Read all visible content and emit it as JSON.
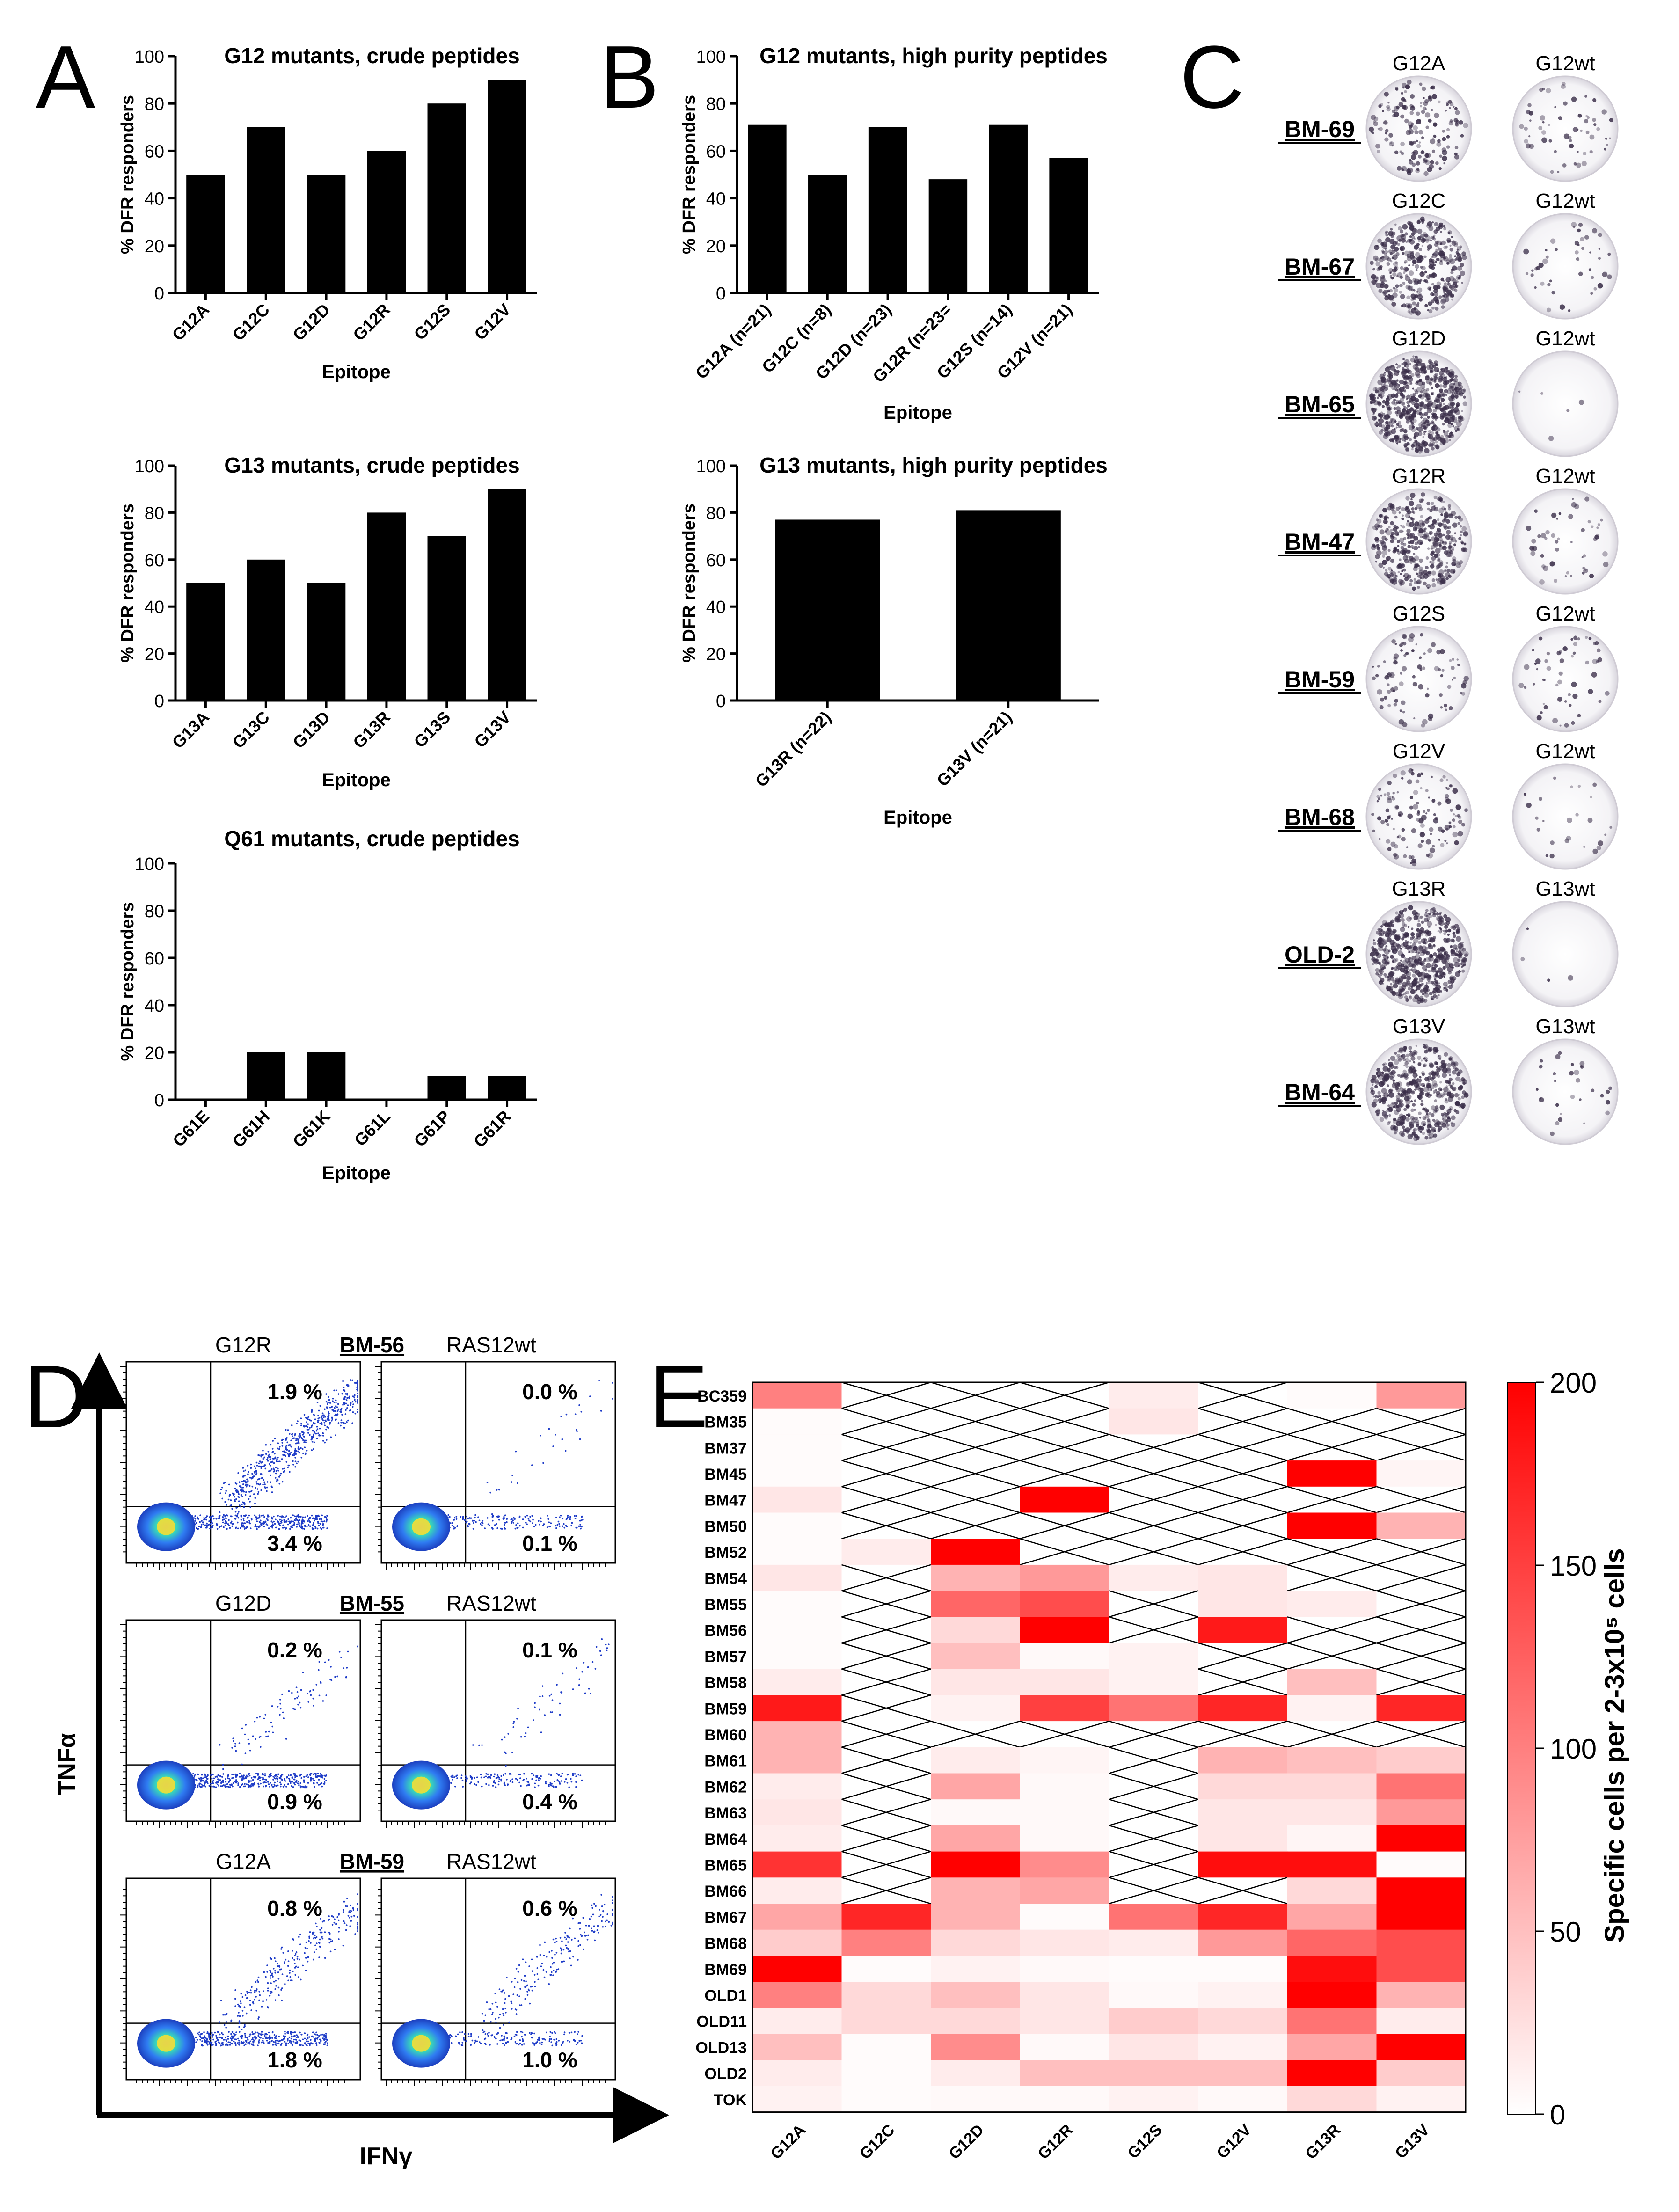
{
  "panel_letters": [
    "A",
    "B",
    "C",
    "D",
    "E"
  ],
  "chart_data": [
    {
      "id": "A1",
      "type": "bar",
      "title": "G12 mutants, crude peptides",
      "xlabel": "Epitope",
      "ylabel": "% DFR responders",
      "ylim": [
        0,
        100
      ],
      "yticks": [
        0,
        20,
        40,
        60,
        80,
        100
      ],
      "categories": [
        "G12A",
        "G12C",
        "G12D",
        "G12R",
        "G12S",
        "G12V"
      ],
      "values": [
        50,
        70,
        50,
        60,
        80,
        90
      ]
    },
    {
      "id": "A2",
      "type": "bar",
      "title": "G13 mutants, crude peptides",
      "xlabel": "Epitope",
      "ylabel": "% DFR responders",
      "ylim": [
        0,
        100
      ],
      "yticks": [
        0,
        20,
        40,
        60,
        80,
        100
      ],
      "categories": [
        "G13A",
        "G13C",
        "G13D",
        "G13R",
        "G13S",
        "G13V"
      ],
      "values": [
        50,
        60,
        50,
        80,
        70,
        90
      ]
    },
    {
      "id": "A3",
      "type": "bar",
      "title": "Q61 mutants, crude peptides",
      "xlabel": "Epitope",
      "ylabel": "% DFR responders",
      "ylim": [
        0,
        100
      ],
      "yticks": [
        0,
        20,
        40,
        60,
        80,
        100
      ],
      "categories": [
        "G61E",
        "G61H",
        "G61K",
        "G61L",
        "G61P",
        "G61R"
      ],
      "values": [
        0,
        20,
        20,
        0,
        10,
        10
      ]
    },
    {
      "id": "B1",
      "type": "bar",
      "title": "G12 mutants, high purity peptides",
      "xlabel": "Epitope",
      "ylabel": "% DFR responders",
      "ylim": [
        0,
        100
      ],
      "yticks": [
        0,
        20,
        40,
        60,
        80,
        100
      ],
      "categories": [
        "G12A (n=21)",
        "G12C (n=8)",
        "G12D (n=23)",
        "G12R (n=23=",
        "G12S (n=14)",
        "G12V (n=21)"
      ],
      "values": [
        71,
        50,
        70,
        48,
        71,
        57
      ]
    },
    {
      "id": "B2",
      "type": "bar",
      "title": "G13 mutants, high purity peptides",
      "xlabel": "Epitope",
      "ylabel": "% DFR responders",
      "ylim": [
        0,
        100
      ],
      "yticks": [
        0,
        20,
        40,
        60,
        80,
        100
      ],
      "categories": [
        "G13R (n=22)",
        "G13V (n=21)"
      ],
      "values": [
        77,
        81
      ]
    },
    {
      "id": "E",
      "type": "heatmap",
      "columns": [
        "G12A",
        "G12C",
        "G12D",
        "G12R",
        "G12S",
        "G12V",
        "G13R",
        "G13V"
      ],
      "rows": [
        "BC359",
        "BM35",
        "BM37",
        "BM45",
        "BM47",
        "BM50",
        "BM52",
        "BM54",
        "BM55",
        "BM56",
        "BM57",
        "BM58",
        "BM59",
        "BM60",
        "BM61",
        "BM62",
        "BM63",
        "BM64",
        "BM65",
        "BM66",
        "BM67",
        "BM68",
        "BM69",
        "OLD1",
        "OLD11",
        "OLD13",
        "OLD2",
        "TOK"
      ],
      "values": [
        [
          100,
          null,
          null,
          null,
          15,
          null,
          3,
          80
        ],
        [
          3,
          null,
          null,
          null,
          20,
          null,
          null,
          null
        ],
        [
          3,
          null,
          null,
          null,
          null,
          null,
          null,
          null
        ],
        [
          3,
          null,
          null,
          null,
          null,
          null,
          200,
          8
        ],
        [
          20,
          null,
          null,
          200,
          null,
          null,
          null,
          null
        ],
        [
          3,
          null,
          null,
          null,
          null,
          null,
          200,
          60
        ],
        [
          3,
          15,
          200,
          null,
          null,
          null,
          null,
          null
        ],
        [
          20,
          null,
          60,
          80,
          15,
          20,
          null,
          null
        ],
        [
          3,
          null,
          120,
          140,
          null,
          20,
          15,
          null
        ],
        [
          3,
          null,
          30,
          200,
          null,
          180,
          null,
          null
        ],
        [
          3,
          null,
          50,
          5,
          10,
          null,
          null,
          null
        ],
        [
          15,
          null,
          20,
          20,
          10,
          null,
          50,
          null
        ],
        [
          180,
          null,
          10,
          150,
          110,
          170,
          10,
          170
        ],
        [
          60,
          null,
          null,
          null,
          null,
          null,
          null,
          null
        ],
        [
          60,
          null,
          15,
          8,
          null,
          60,
          50,
          40
        ],
        [
          15,
          null,
          70,
          5,
          null,
          30,
          30,
          110
        ],
        [
          20,
          null,
          5,
          5,
          null,
          20,
          20,
          80
        ],
        [
          15,
          null,
          70,
          5,
          null,
          20,
          8,
          200
        ],
        [
          160,
          null,
          200,
          90,
          null,
          190,
          190,
          3
        ],
        [
          15,
          null,
          60,
          70,
          null,
          null,
          30,
          200
        ],
        [
          70,
          170,
          60,
          3,
          110,
          170,
          70,
          200
        ],
        [
          40,
          100,
          30,
          20,
          15,
          80,
          120,
          140
        ],
        [
          200,
          3,
          10,
          5,
          3,
          3,
          190,
          140
        ],
        [
          100,
          30,
          50,
          20,
          5,
          10,
          200,
          60
        ],
        [
          15,
          30,
          30,
          20,
          40,
          30,
          110,
          15
        ],
        [
          50,
          3,
          90,
          5,
          20,
          10,
          70,
          200
        ],
        [
          15,
          3,
          15,
          50,
          50,
          50,
          200,
          40
        ],
        [
          10,
          3,
          5,
          5,
          10,
          5,
          30,
          10
        ]
      ],
      "colorbar": {
        "min": 0,
        "max": 200,
        "ticks": [
          0,
          50,
          100,
          150,
          200
        ],
        "label": "Specific cells per 2-3x10⁵ cells"
      }
    }
  ],
  "panel_c": {
    "rows": [
      {
        "patient": "BM-69",
        "mutant": "G12A",
        "wt": "G12wt"
      },
      {
        "patient": "BM-67",
        "mutant": "G12C",
        "wt": "G12wt"
      },
      {
        "patient": "BM-65",
        "mutant": "G12D",
        "wt": "G12wt"
      },
      {
        "patient": "BM-47",
        "mutant": "G12R",
        "wt": "G12wt"
      },
      {
        "patient": "BM-59",
        "mutant": "G12S",
        "wt": "G12wt"
      },
      {
        "patient": "BM-68",
        "mutant": "G12V",
        "wt": "G12wt"
      },
      {
        "patient": "OLD-2",
        "mutant": "G13R",
        "wt": "G13wt"
      },
      {
        "patient": "BM-64",
        "mutant": "G13V",
        "wt": "G13wt"
      }
    ]
  },
  "panel_d": {
    "y_axis": "TNFα",
    "x_axis": "IFNγ",
    "rows": [
      {
        "patient": "BM-56",
        "mutant": "G12R",
        "wt": "RAS12wt",
        "mutant_upper": "1.9 %",
        "mutant_lower": "3.4 %",
        "wt_upper": "0.0 %",
        "wt_lower": "0.1 %",
        "mutant_upper_fraction": 1.9,
        "wt_upper_fraction": 0.0
      },
      {
        "patient": "BM-55",
        "mutant": "G12D",
        "wt": "RAS12wt",
        "mutant_upper": "0.2 %",
        "mutant_lower": "0.9 %",
        "wt_upper": "0.1 %",
        "wt_lower": "0.4 %",
        "mutant_upper_fraction": 0.2,
        "wt_upper_fraction": 0.1
      },
      {
        "patient": "BM-59",
        "mutant": "G12A",
        "wt": "RAS12wt",
        "mutant_upper": "0.8 %",
        "mutant_lower": "1.8 %",
        "wt_upper": "0.6 %",
        "wt_lower": "1.0 %",
        "mutant_upper_fraction": 0.8,
        "wt_upper_fraction": 0.6
      }
    ]
  }
}
